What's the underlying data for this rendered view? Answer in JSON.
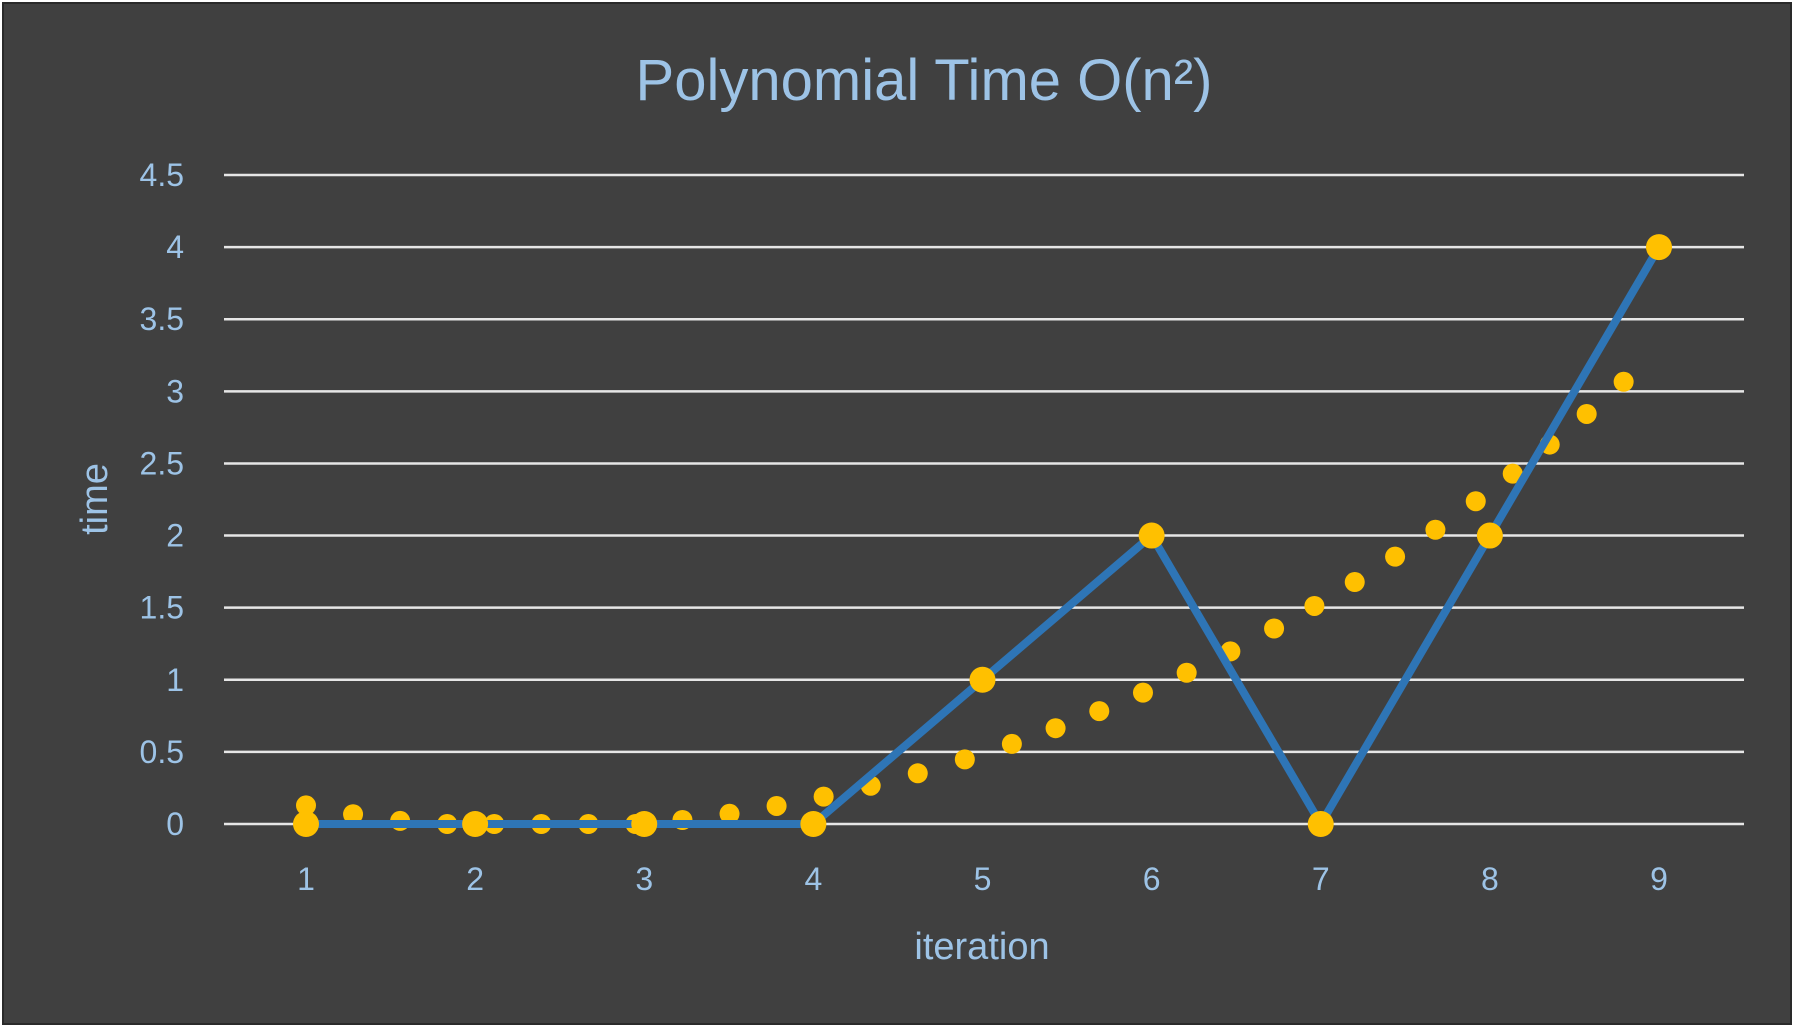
{
  "chart_data": {
    "type": "line",
    "title": "Polynomial Time O(n²)",
    "xlabel": "iteration",
    "ylabel": "time",
    "categories": [
      "1",
      "2",
      "3",
      "4",
      "5",
      "6",
      "7",
      "8",
      "9"
    ],
    "series": [
      {
        "values": [
          0,
          0,
          0,
          0,
          1,
          2,
          0,
          2,
          4
        ],
        "color": "#2e75b6",
        "marker_color": "#ffc000"
      }
    ],
    "trendline": {
      "style": "dotted",
      "kind": "polynomial",
      "color": "#ffc000",
      "x_range": [
        1,
        8.95
      ],
      "points": [
        [
          1,
          0.12
        ],
        [
          2,
          0.0
        ],
        [
          3,
          0.0
        ],
        [
          4,
          0.15
        ],
        [
          5,
          0.48
        ],
        [
          6,
          0.96
        ],
        [
          7,
          1.56
        ],
        [
          8,
          2.27
        ],
        [
          8.95,
          3.25
        ]
      ]
    },
    "ylim": [
      0,
      4.5
    ],
    "yticks": [
      "0",
      "0.5",
      "1",
      "1.5",
      "2",
      "2.5",
      "3",
      "3.5",
      "4",
      "4.5"
    ],
    "grid": true,
    "colors": {
      "background": "#404040",
      "text": "#9dc3e6",
      "grid": "#e6e6e6"
    }
  }
}
